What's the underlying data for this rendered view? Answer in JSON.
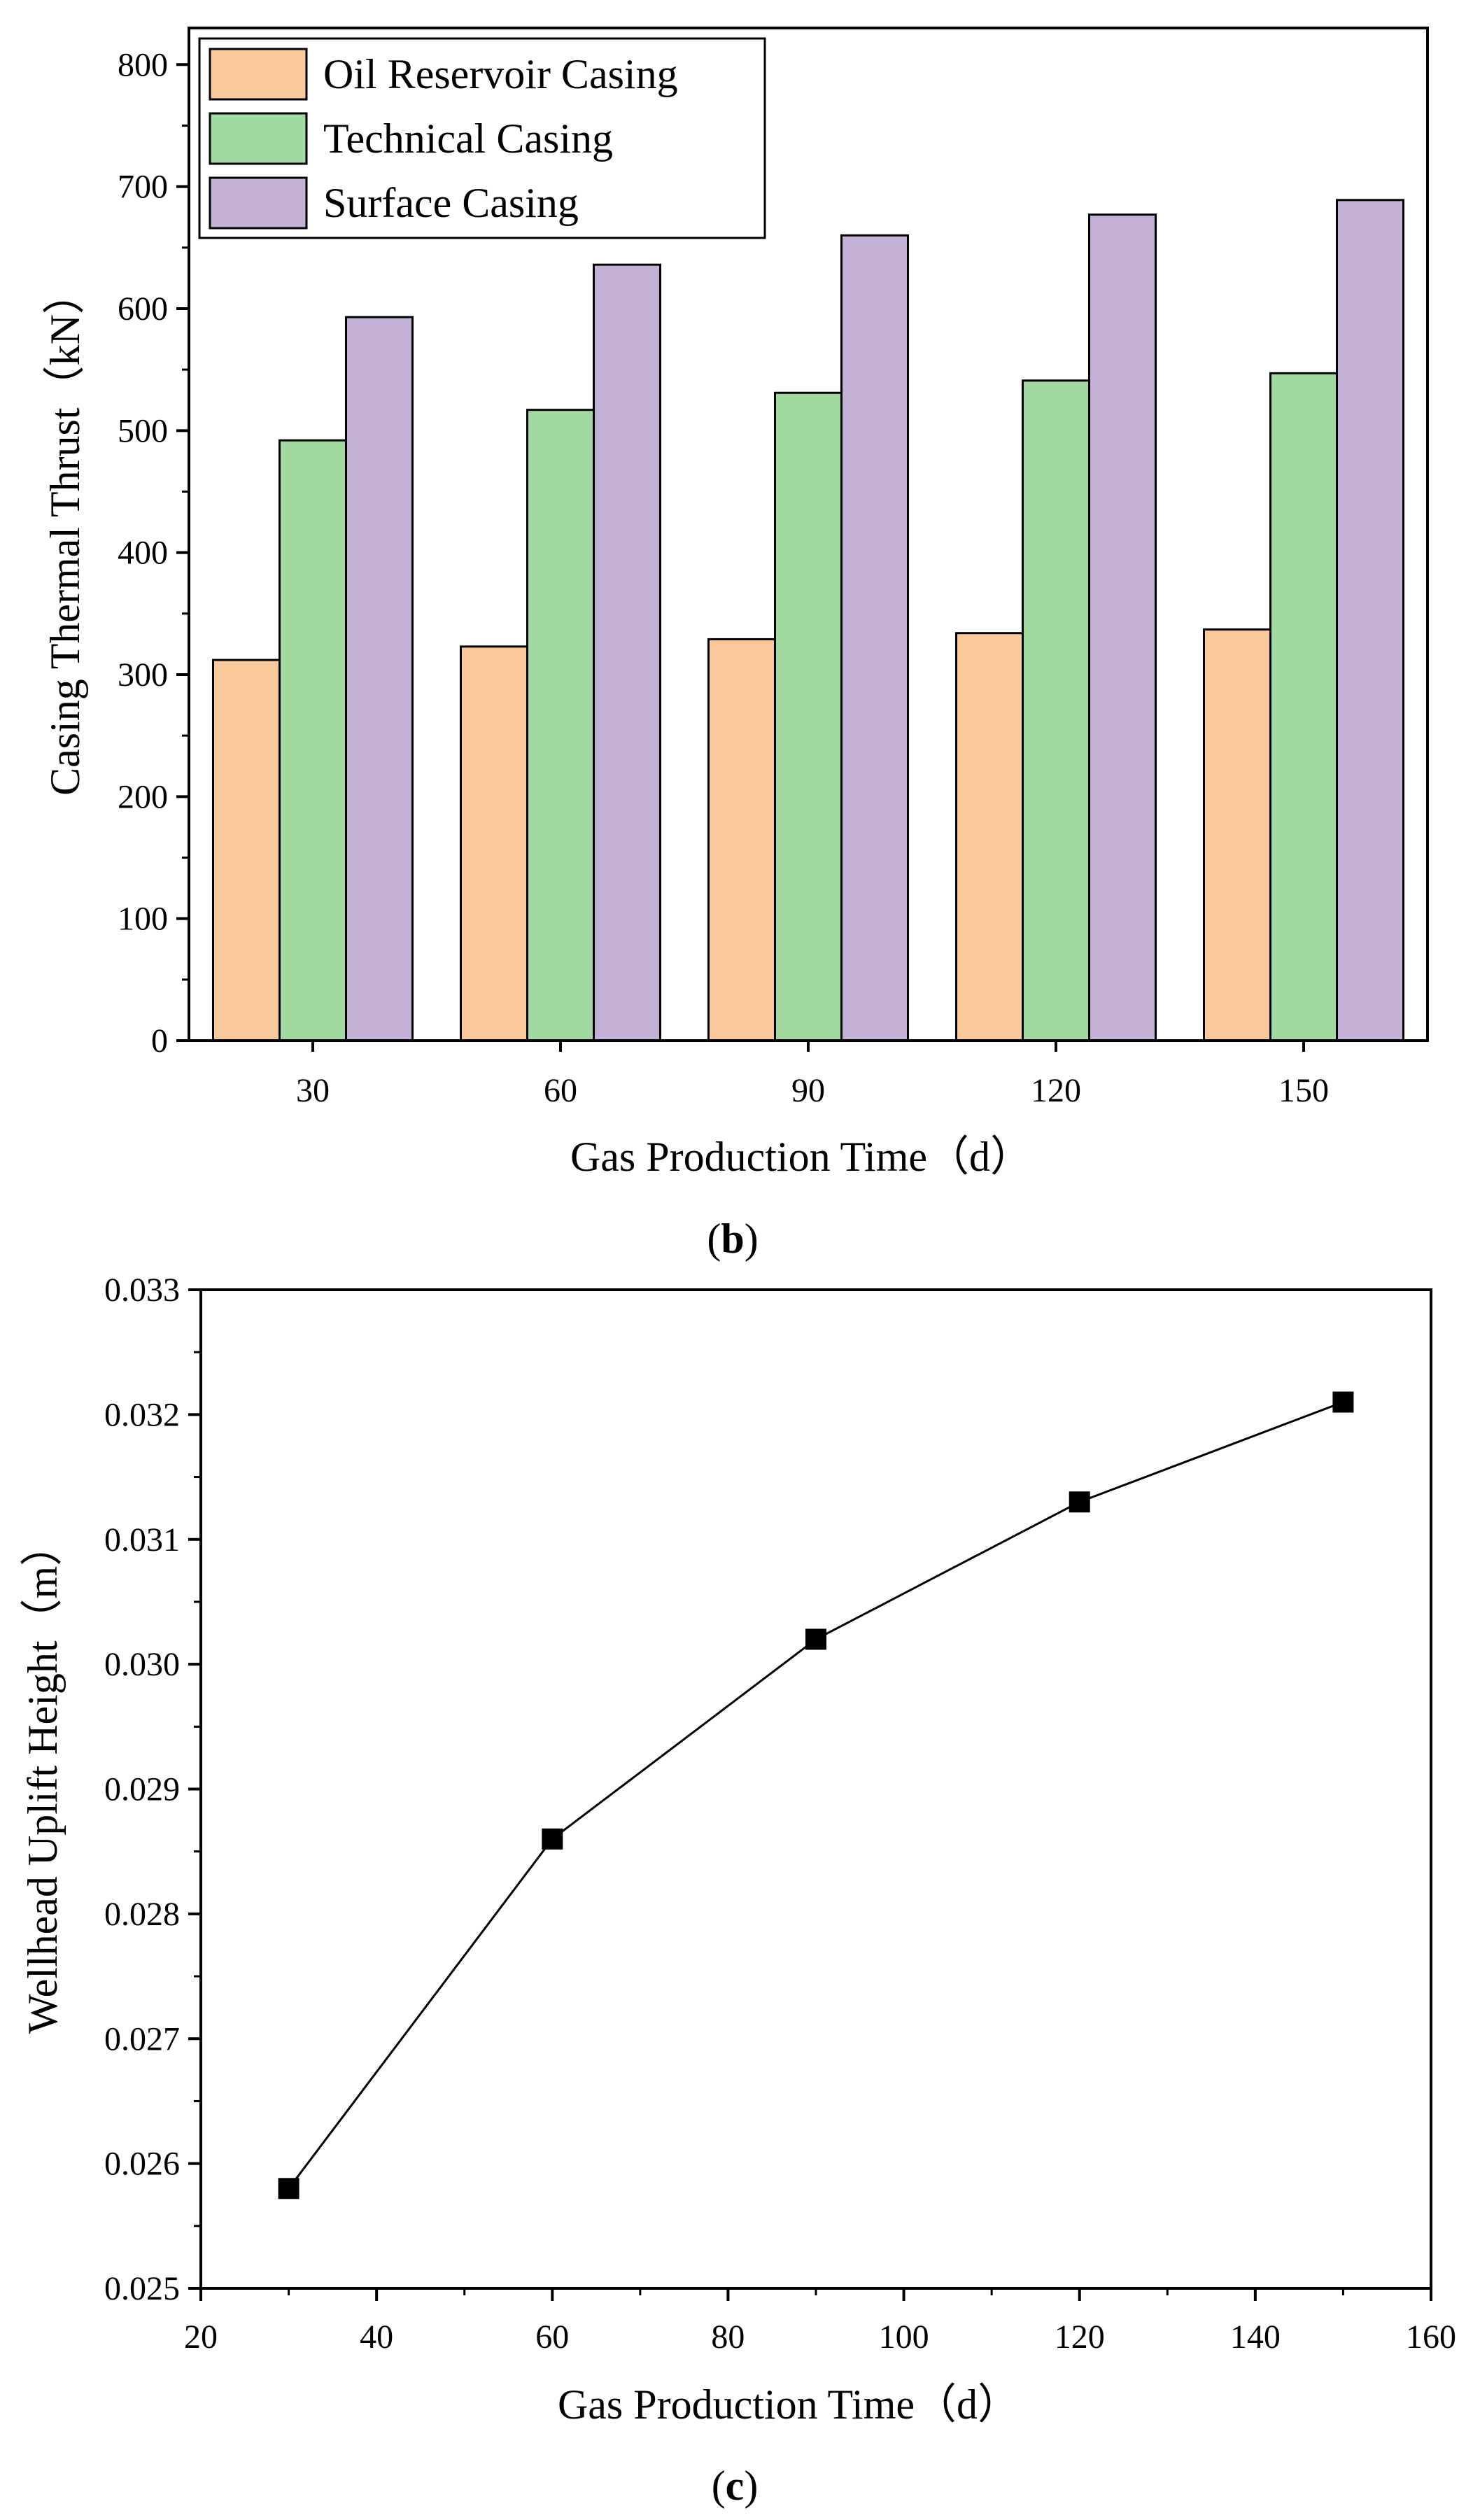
{
  "chart_data": [
    {
      "type": "bar",
      "panel_label": {
        "open": "(",
        "letter": "b",
        "close": ")"
      },
      "xlabel": "Gas Production Time（d）",
      "ylabel": "Casing Thermal Thrust（kN）",
      "categories": [
        "30",
        "60",
        "90",
        "120",
        "150"
      ],
      "ylim": [
        0,
        830
      ],
      "yticks": [
        0,
        100,
        200,
        300,
        400,
        500,
        600,
        700,
        800
      ],
      "legend_position": "top-left",
      "series": [
        {
          "name": "Oil Reservoir Casing",
          "color": "#F9C89B",
          "values": [
            312,
            323,
            329,
            334,
            337
          ]
        },
        {
          "name": "Technical Casing",
          "color": "#A0DAA0",
          "values": [
            492,
            517,
            531,
            541,
            547
          ]
        },
        {
          "name": "Surface Casing",
          "color": "#C3B2D6",
          "values": [
            593,
            636,
            660,
            677,
            689
          ]
        }
      ]
    },
    {
      "type": "line",
      "panel_label": {
        "open": "(",
        "letter": "c",
        "close": ")"
      },
      "xlabel": "Gas Production Time（d）",
      "ylabel": "Wellhead Uplift Height（m）",
      "x": [
        30,
        60,
        90,
        120,
        150
      ],
      "y": [
        0.0258,
        0.0286,
        0.0302,
        0.0313,
        0.0321
      ],
      "xlim": [
        20,
        160
      ],
      "ylim": [
        0.025,
        0.033
      ],
      "xticks": [
        "20",
        "40",
        "60",
        "80",
        "100",
        "120",
        "140",
        "160"
      ],
      "yticks": [
        "0.025",
        "0.026",
        "0.027",
        "0.028",
        "0.029",
        "0.030",
        "0.031",
        "0.032",
        "0.033"
      ],
      "marker": "square",
      "color": "#000000",
      "grid": false
    }
  ]
}
